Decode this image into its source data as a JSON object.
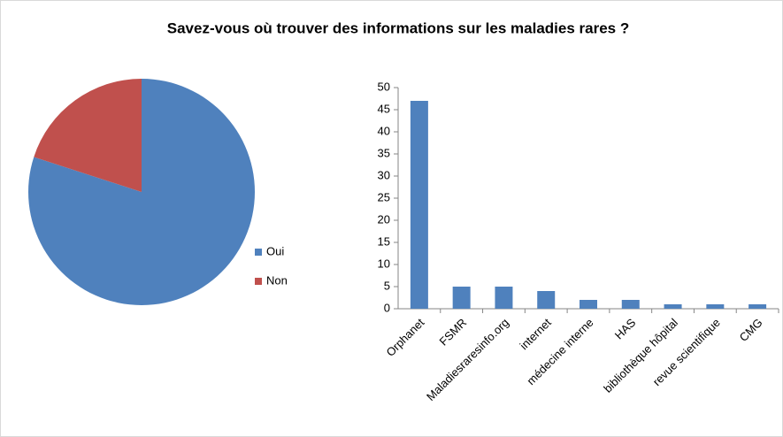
{
  "title": "Savez-vous où trouver des informations sur les maladies rares ?",
  "chart_data": [
    {
      "type": "pie",
      "categories": [
        "Oui",
        "Non"
      ],
      "values": [
        80,
        20
      ],
      "colors": [
        "#4f81bd",
        "#c0504d"
      ],
      "legend": "right"
    },
    {
      "type": "bar",
      "categories": [
        "Orphanet",
        "FSMR",
        "Maladiesraresinfo.org",
        "internet",
        "médecine interne",
        "HAS",
        "bibliothèque hôpital",
        "revue scientifique",
        "CMG"
      ],
      "values": [
        47,
        5,
        5,
        4,
        2,
        2,
        1,
        1,
        1
      ],
      "color": "#4f81bd",
      "ylim": [
        0,
        50
      ],
      "yticks": [
        0,
        5,
        10,
        15,
        20,
        25,
        30,
        35,
        40,
        45,
        50
      ],
      "grid": false
    }
  ]
}
